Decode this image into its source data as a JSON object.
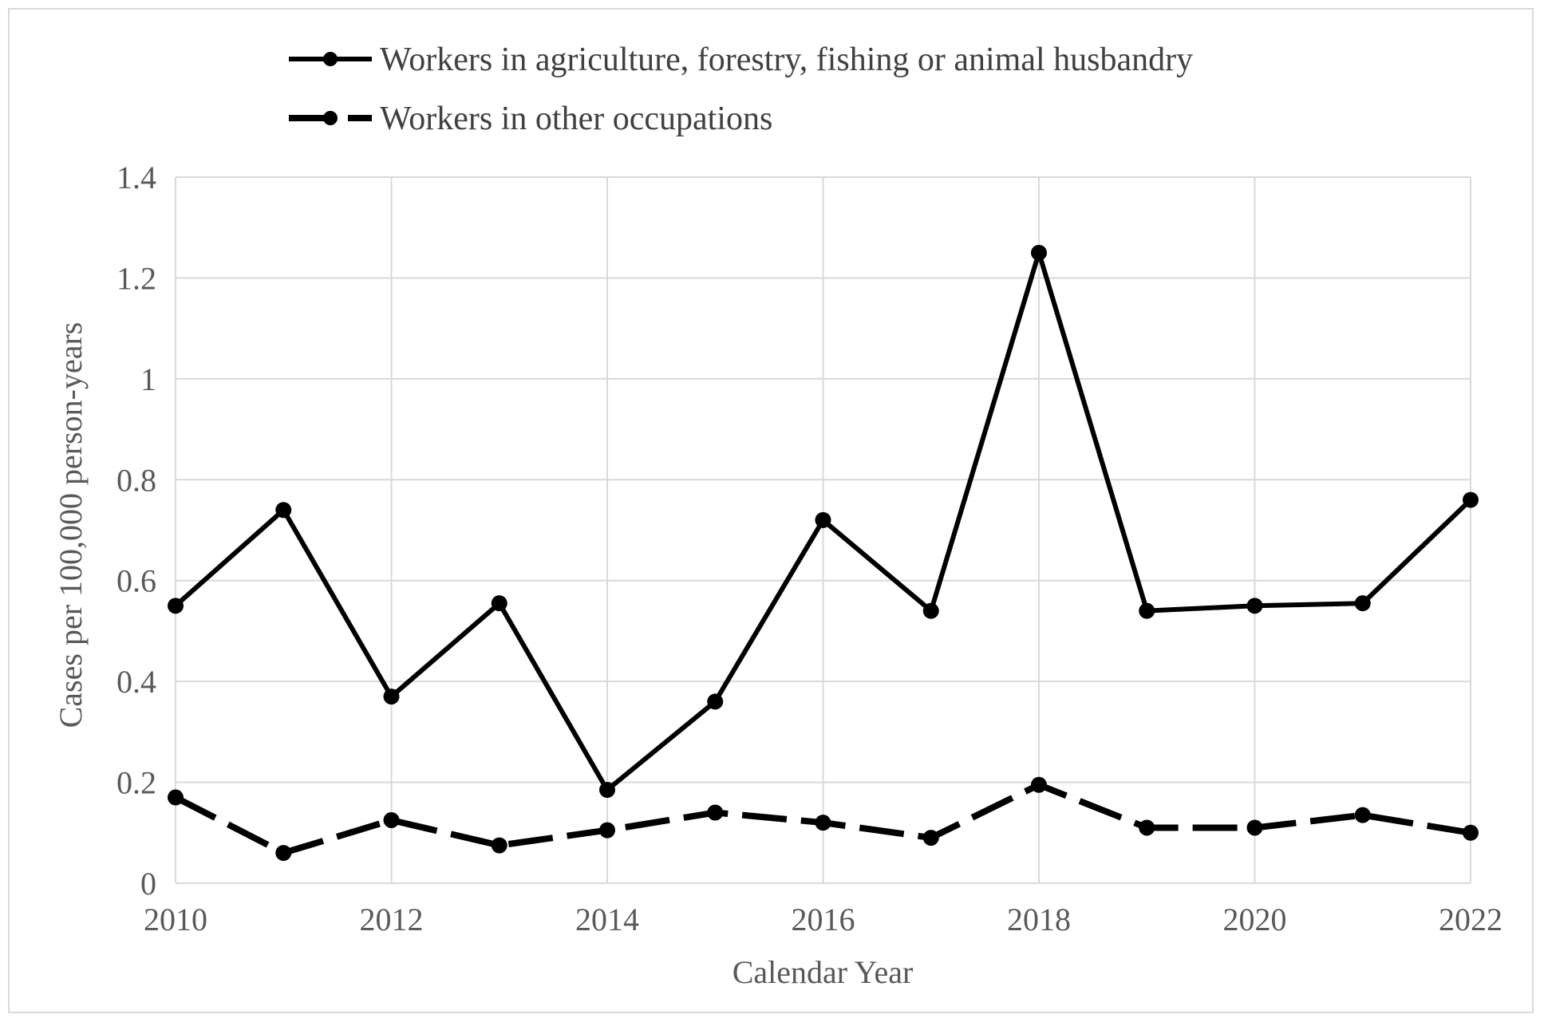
{
  "chart_data": {
    "type": "line",
    "title": "",
    "xlabel": "Calendar Year",
    "ylabel": "Cases per 100,000 person-years",
    "x": [
      2010,
      2011,
      2012,
      2013,
      2014,
      2015,
      2016,
      2017,
      2018,
      2019,
      2020,
      2021,
      2022
    ],
    "x_tick_labels": [
      "2010",
      "2012",
      "2014",
      "2016",
      "2018",
      "2020",
      "2022"
    ],
    "y_tick_labels": [
      "0",
      "0.2",
      "0.4",
      "0.6",
      "0.8",
      "1",
      "1.2",
      "1.4"
    ],
    "xlim": [
      2010,
      2022
    ],
    "ylim": [
      0,
      1.4
    ],
    "grid": true,
    "legend_position": "top",
    "series": [
      {
        "name": "Workers in agriculture, forestry, fishing or animal husbandry",
        "style": "solid",
        "color": "#000000",
        "values": [
          0.55,
          0.74,
          0.37,
          0.555,
          0.185,
          0.36,
          0.72,
          0.54,
          1.25,
          0.54,
          0.55,
          0.555,
          0.76
        ]
      },
      {
        "name": "Workers in other occupations",
        "style": "dashed",
        "color": "#000000",
        "values": [
          0.17,
          0.06,
          0.125,
          0.075,
          0.105,
          0.14,
          0.12,
          0.09,
          0.195,
          0.11,
          0.11,
          0.135,
          0.1
        ]
      }
    ]
  }
}
